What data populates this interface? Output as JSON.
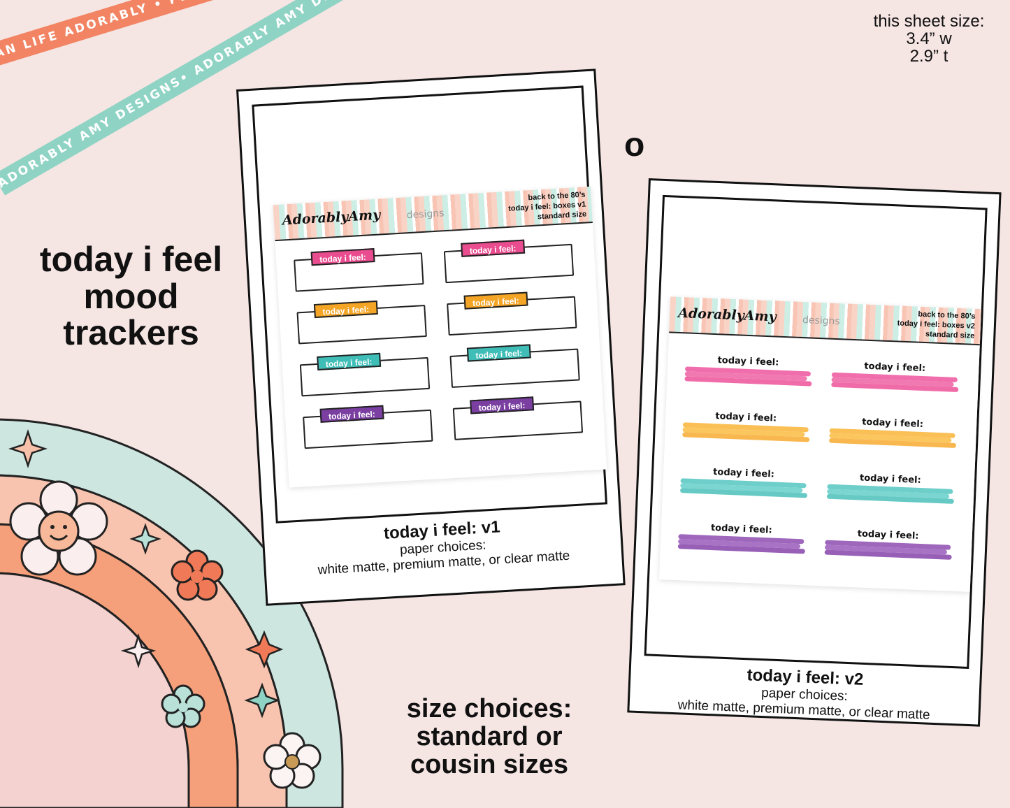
{
  "ribbons": {
    "orange": "PLAN LIFE ADORABLY • PLAN LIFE ADORABLY • PLAN LIFE ADORABLY •",
    "teal": "ADORABLY AMY DESIGNS• ADORABLY AMY DESIGNS• ADORABLY AMY DESIGNS •"
  },
  "size_info": {
    "line1": "this sheet size:",
    "line2": "3.4” w",
    "line3": "2.9” t"
  },
  "headline": {
    "line1": "today i feel",
    "line2": "mood",
    "line3": "trackers"
  },
  "size_choices": {
    "line1": "size choices:",
    "line2": "standard or",
    "line3": "cousin sizes"
  },
  "separator": "o",
  "brand": {
    "script": "AdorablyAmy",
    "word": "designs"
  },
  "card_v1": {
    "sheet_info": [
      "back to the 80’s",
      "today i feel: boxes v1",
      "standard size"
    ],
    "tag_text": "today i feel:",
    "caption_title": "today i feel: v1",
    "caption_paper": "paper choices:",
    "caption_options": "white matte, premium matte, or clear matte"
  },
  "card_v2": {
    "sheet_info": [
      "back to the 80’s",
      "today i feel: boxes v2",
      "standard size"
    ],
    "tag_text": "today i feel:",
    "caption_title": "today i feel: v2",
    "caption_paper": "paper choices:",
    "caption_options": "white matte, premium matte, or clear matte"
  },
  "colors": {
    "pink": "#e94c8f",
    "orange": "#f5a526",
    "teal": "#3fbdb7",
    "purple": "#7a3fa0",
    "ribbon_orange": "#f28463",
    "ribbon_teal": "#8fd3c4"
  },
  "icons": [
    "smiley-flower-icon",
    "flower-icon",
    "sparkle-icon",
    "star-icon"
  ]
}
